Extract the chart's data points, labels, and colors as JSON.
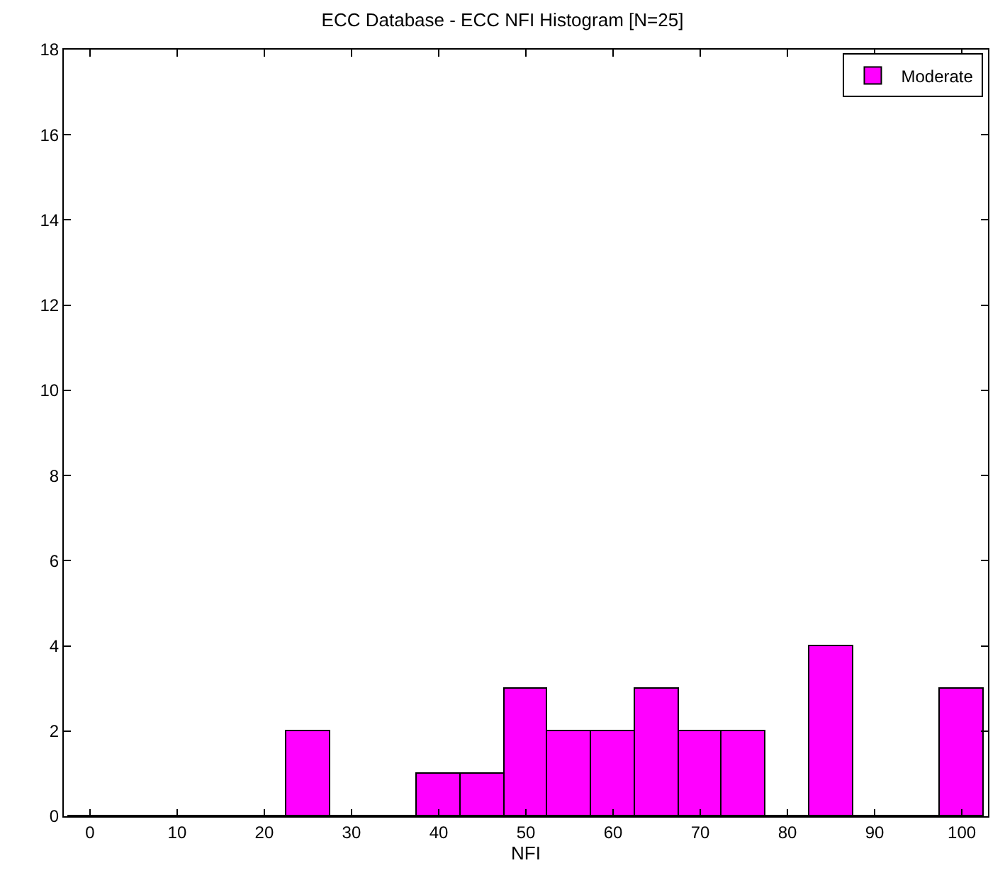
{
  "chart_data": {
    "type": "histogram",
    "title": "ECC Database - ECC NFI Histogram [N=25]",
    "xlabel": "NFI",
    "bins": [
      -2.5,
      2.5,
      7.5,
      12.5,
      17.5,
      22.5,
      27.5,
      32.5,
      37.5,
      42.5,
      47.5,
      52.5,
      57.5,
      62.5,
      67.5,
      72.5,
      77.5,
      82.5,
      87.5,
      92.5,
      97.5,
      102.5
    ],
    "series": [
      {
        "name": "Moderate",
        "color": "#ff00ff",
        "values": [
          0,
          0,
          0,
          0,
          0,
          2,
          0,
          0,
          1,
          1,
          3,
          2,
          2,
          3,
          2,
          2,
          0,
          4,
          0,
          0,
          3
        ]
      }
    ],
    "xlim": [
      -3,
      103
    ],
    "xticks": [
      0,
      10,
      20,
      30,
      40,
      50,
      60,
      70,
      80,
      90,
      100
    ],
    "ylim": [
      0,
      18
    ],
    "yticks": [
      0,
      2,
      4,
      6,
      8,
      10,
      12,
      14,
      16,
      18
    ],
    "grid": false,
    "legend": "top right"
  }
}
